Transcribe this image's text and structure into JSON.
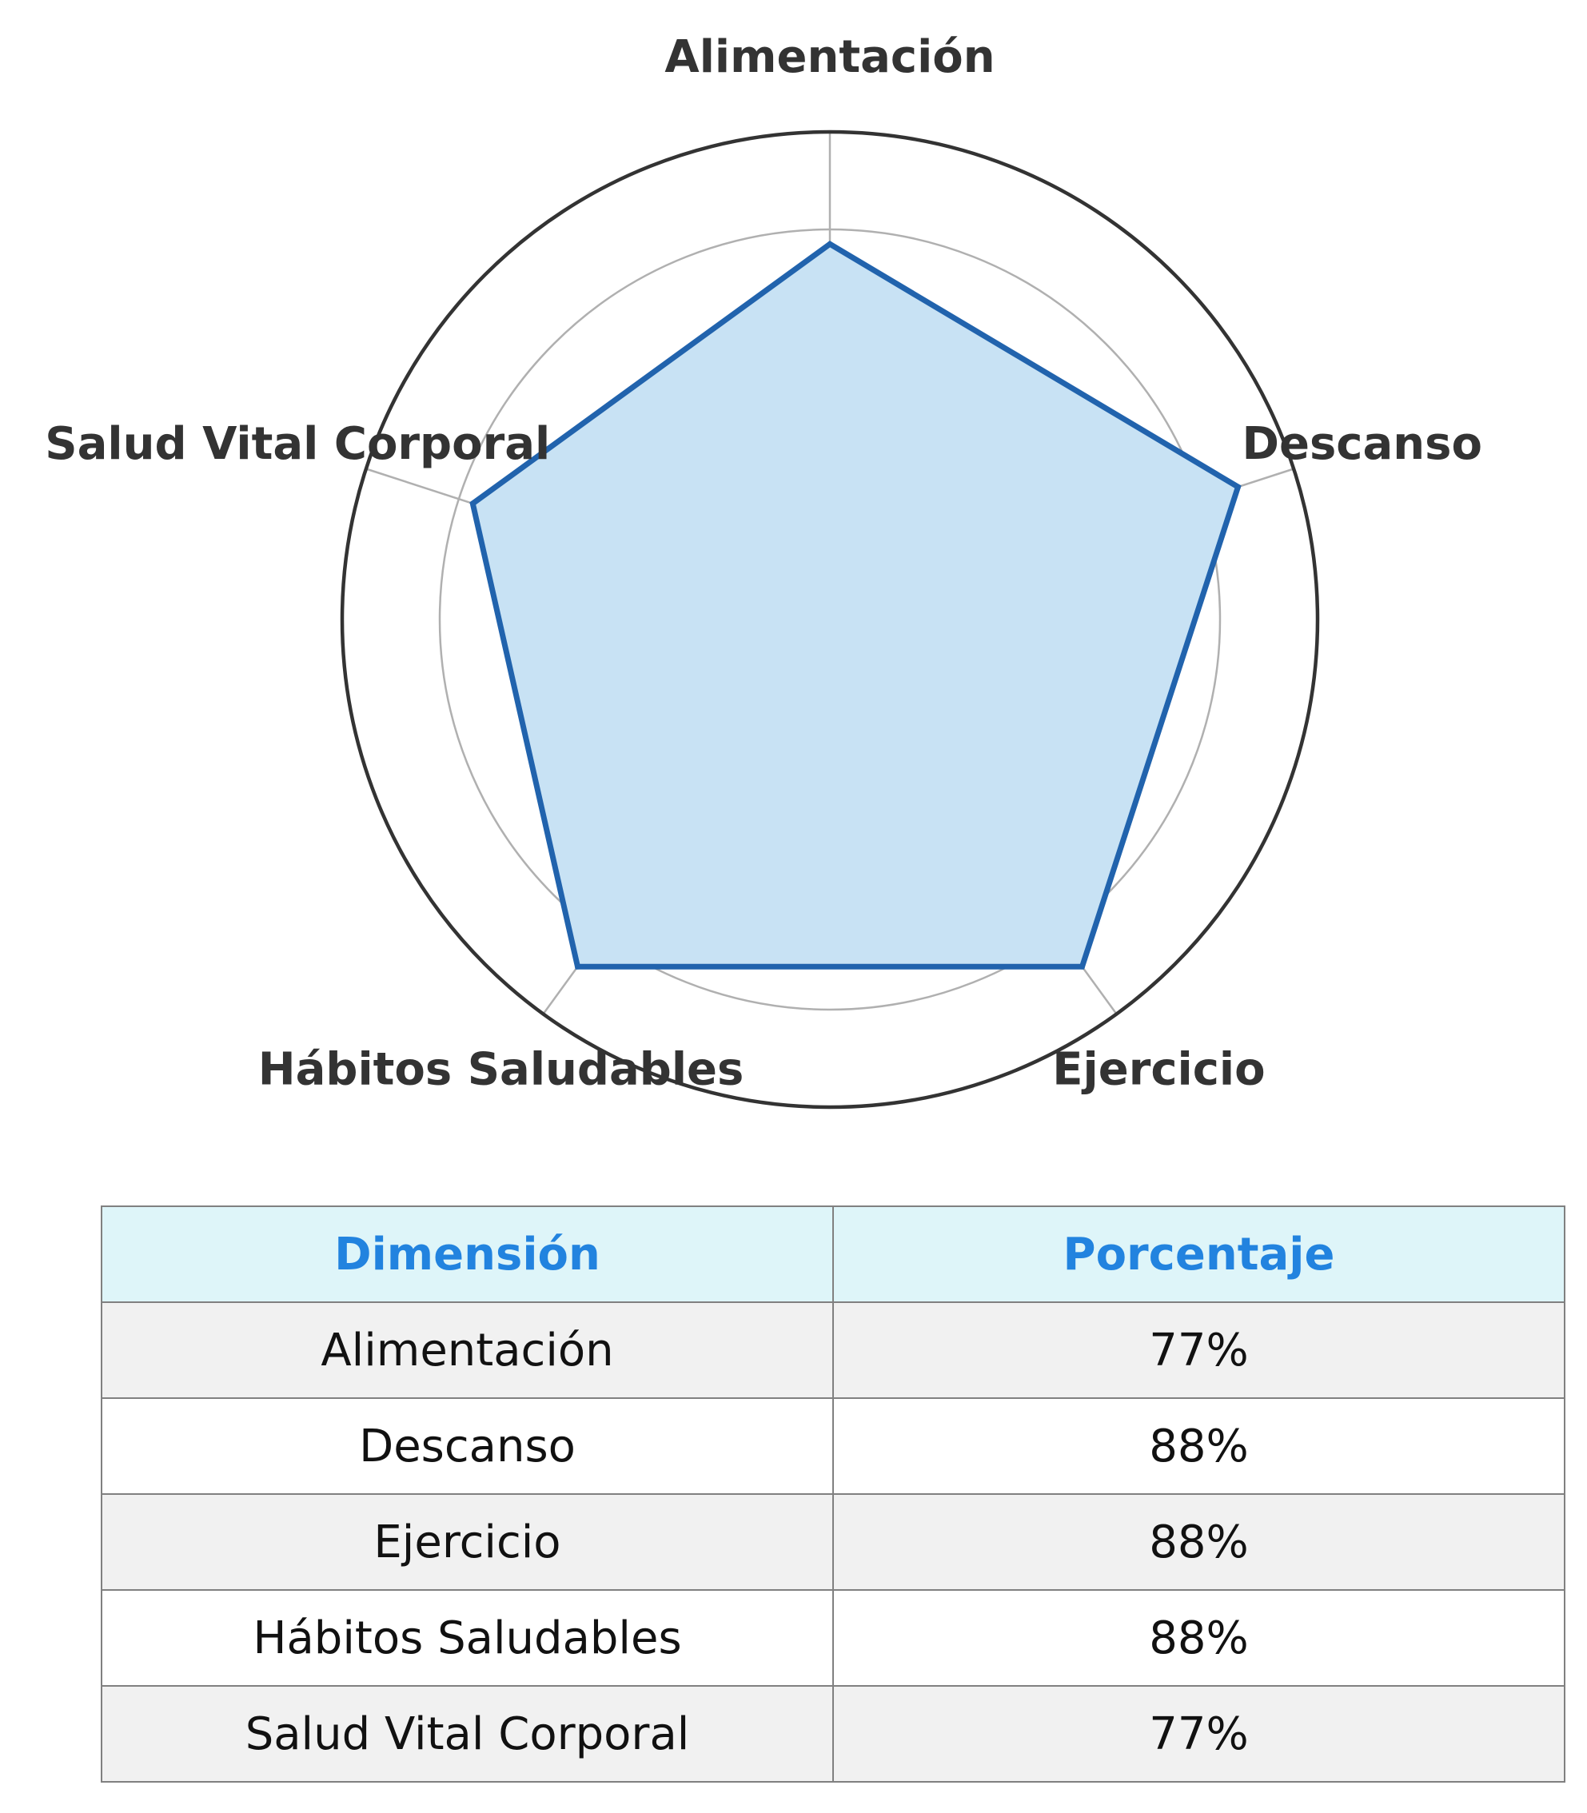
{
  "chart_data": {
    "type": "radar",
    "title": "",
    "categories": [
      "Alimentación",
      "Descanso",
      "Ejercicio",
      "Hábitos Saludables",
      "Salud Vital Corporal"
    ],
    "values": [
      77,
      88,
      88,
      88,
      77
    ],
    "unit": "%",
    "rlim": [
      0,
      100
    ],
    "grid_rings": [
      20,
      40,
      60,
      80
    ],
    "grid": true,
    "line_color": "#2163ad",
    "fill_color": "#c8e2f4",
    "grid_color": "#b0b0b0",
    "outer_ring_color": "#333333"
  },
  "table": {
    "headers": [
      "Dimensión",
      "Porcentaje"
    ],
    "rows": [
      [
        "Alimentación",
        "77%"
      ],
      [
        "Descanso",
        "88%"
      ],
      [
        "Ejercicio",
        "88%"
      ],
      [
        "Hábitos Saludables",
        "88%"
      ],
      [
        "Salud Vital Corporal",
        "77%"
      ]
    ],
    "header_bg": "#def5f9",
    "header_color": "#2283df"
  }
}
